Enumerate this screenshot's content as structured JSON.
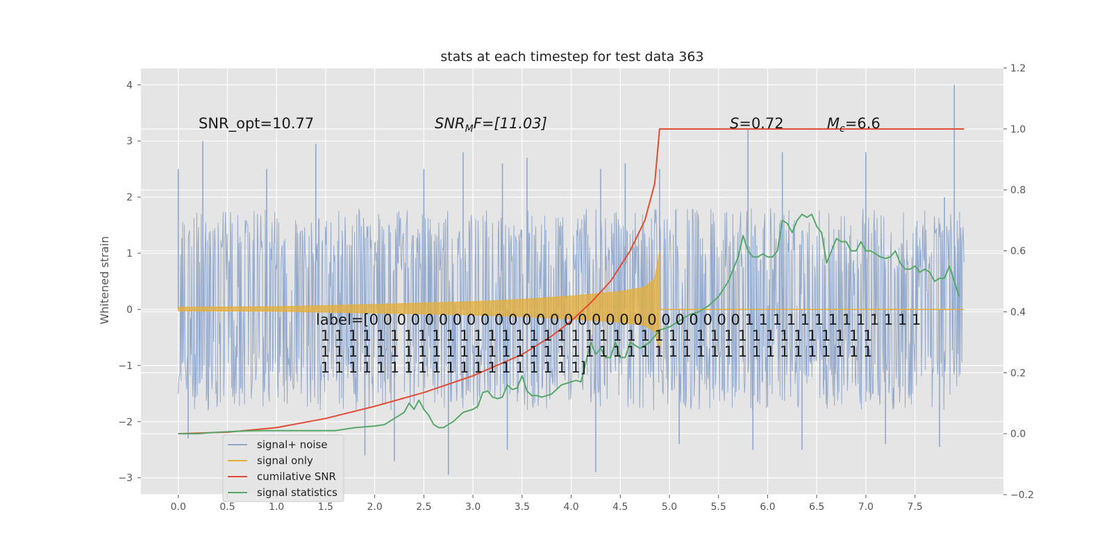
{
  "chart_data": {
    "type": "line",
    "title": "stats at each timestep for test data 363",
    "ylabel": "Whitened strain",
    "xlim": [
      -0.38,
      8.4
    ],
    "ylim": [
      -3.3,
      4.3
    ],
    "y2lim": [
      -0.2,
      1.2
    ],
    "x_ticks": [
      0.0,
      0.5,
      1.0,
      1.5,
      2.0,
      2.5,
      3.0,
      3.5,
      4.0,
      4.5,
      5.0,
      5.5,
      6.0,
      6.5,
      7.0,
      7.5
    ],
    "x_tick_labels": [
      "0.0",
      "0.5",
      "1.0",
      "1.5",
      "2.0",
      "2.5",
      "3.0",
      "3.5",
      "4.0",
      "4.5",
      "5.0",
      "5.5",
      "6.0",
      "6.5",
      "7.0",
      "7.5"
    ],
    "y_ticks": [
      -3,
      -2,
      -1,
      0,
      1,
      2,
      3,
      4
    ],
    "y_tick_labels": [
      "−3",
      "−2",
      "−1",
      "0",
      "1",
      "2",
      "3",
      "4"
    ],
    "y2_ticks": [
      -0.2,
      0.0,
      0.2,
      0.4,
      0.6,
      0.8,
      1.0,
      1.2
    ],
    "y2_tick_labels": [
      "−0.2",
      "0.0",
      "0.2",
      "0.4",
      "0.6",
      "0.8",
      "1.0",
      "1.2"
    ],
    "grid": true,
    "legend_position": "lower-left",
    "annotations": {
      "snr_opt": "SNR_opt=10.77",
      "snr_mf_main": "SNR",
      "snr_mf_sub": "M",
      "snr_mf_rest": "F=[11.03]",
      "s_var": "S",
      "s_rest": "=0.72",
      "mc_var": "M",
      "mc_sub": "c",
      "mc_rest": "=6.6",
      "label_lines": [
        "label=[0 0 0 0 0 0 0 0 0 0 0 0 0 0 0 0 0 0 0 0 0 0 0 0 0 0 0 1 1 1 1 1 1 1 1 1 1 1 1 1",
        " 1 1 1 1 1 1 1 1 1 1 1 1 1 1 1 1 1 1 1 1 1 1 1 1 1 1 1 1 1 1 1 1 1 1 1 1 1 1 1 1",
        " 1 1 1 1 1 1 1 1 1 1 1 1 1 1 1 1 1 1 1 1 1 1 1 1 1 1 1 1 1 1 1 1 1 1 1 1 1 1 1 1",
        " 1 1 1 1 1 1 1 1 1 1 1 1 1 1 1 1 1 1 1]"
      ]
    },
    "series": [
      {
        "name": "signal+ noise",
        "color": "#8fa6cb",
        "axis": "left",
        "style": "noise-fill",
        "x_range": [
          0.0,
          8.0
        ],
        "envelope_upper": 1.8,
        "envelope_lower": -1.8,
        "peaks_x": [
          0.0,
          0.25,
          0.9,
          1.4,
          2.5,
          2.9,
          3.3,
          3.55,
          4.3,
          4.55,
          4.9,
          5.8,
          6.15,
          7.0,
          7.8,
          7.9
        ],
        "peaks_y": [
          2.5,
          3.0,
          2.5,
          2.95,
          2.5,
          2.8,
          2.6,
          2.7,
          2.5,
          2.6,
          2.5,
          3.2,
          2.8,
          2.8,
          2.0,
          4.0
        ],
        "troughs_x": [
          0.1,
          1.9,
          2.2,
          2.75,
          3.35,
          4.25,
          5.1,
          5.85,
          6.35,
          7.2,
          7.75
        ],
        "troughs_y": [
          -2.3,
          -2.6,
          -2.7,
          -2.95,
          -2.5,
          -2.9,
          -2.4,
          -2.5,
          -2.5,
          -2.4,
          -2.45
        ]
      },
      {
        "name": "signal only",
        "color": "#e5ae38",
        "axis": "left",
        "style": "chirp",
        "x": [
          0.0,
          1.0,
          2.0,
          3.0,
          3.5,
          4.0,
          4.5,
          4.75,
          4.85,
          4.9,
          4.91
        ],
        "amplitude": [
          0.04,
          0.05,
          0.09,
          0.14,
          0.18,
          0.24,
          0.32,
          0.4,
          0.55,
          1.05,
          0.0
        ]
      },
      {
        "name": "cumilative SNR",
        "color": "#e24a33",
        "axis": "right",
        "x": [
          0.0,
          0.5,
          1.0,
          1.5,
          2.0,
          2.5,
          3.0,
          3.5,
          3.8,
          4.0,
          4.2,
          4.4,
          4.6,
          4.75,
          4.85,
          4.9,
          4.91,
          8.0
        ],
        "y": [
          0.0,
          0.005,
          0.02,
          0.05,
          0.09,
          0.135,
          0.19,
          0.26,
          0.32,
          0.37,
          0.43,
          0.5,
          0.6,
          0.7,
          0.82,
          1.0,
          1.0,
          1.0
        ]
      },
      {
        "name": "signal statistics",
        "color": "#55a868",
        "axis": "right",
        "x": [
          0.0,
          0.2,
          0.4,
          0.6,
          0.8,
          1.0,
          1.2,
          1.4,
          1.6,
          1.8,
          2.0,
          2.1,
          2.2,
          2.3,
          2.35,
          2.4,
          2.45,
          2.5,
          2.55,
          2.6,
          2.65,
          2.7,
          2.75,
          2.8,
          2.9,
          3.0,
          3.05,
          3.1,
          3.15,
          3.2,
          3.25,
          3.3,
          3.35,
          3.4,
          3.45,
          3.5,
          3.55,
          3.6,
          3.65,
          3.7,
          3.8,
          3.9,
          4.0,
          4.05,
          4.1,
          4.2,
          4.25,
          4.3,
          4.35,
          4.4,
          4.45,
          4.5,
          4.55,
          4.6,
          4.65,
          4.7,
          4.8,
          4.85,
          4.9,
          5.0,
          5.1,
          5.2,
          5.3,
          5.4,
          5.5,
          5.6,
          5.7,
          5.75,
          5.8,
          5.85,
          5.9,
          5.95,
          6.0,
          6.05,
          6.1,
          6.15,
          6.2,
          6.25,
          6.3,
          6.35,
          6.4,
          6.45,
          6.5,
          6.55,
          6.6,
          6.65,
          6.7,
          6.75,
          6.8,
          6.85,
          6.9,
          6.95,
          7.0,
          7.05,
          7.1,
          7.15,
          7.2,
          7.25,
          7.3,
          7.35,
          7.4,
          7.45,
          7.5,
          7.55,
          7.6,
          7.65,
          7.7,
          7.75,
          7.8,
          7.85,
          7.9,
          7.95
        ],
        "y": [
          0.0,
          0.0,
          0.005,
          0.008,
          0.01,
          0.01,
          0.01,
          0.01,
          0.01,
          0.02,
          0.025,
          0.03,
          0.05,
          0.07,
          0.1,
          0.08,
          0.11,
          0.08,
          0.06,
          0.03,
          0.02,
          0.02,
          0.03,
          0.04,
          0.07,
          0.08,
          0.09,
          0.135,
          0.14,
          0.12,
          0.115,
          0.12,
          0.16,
          0.145,
          0.15,
          0.19,
          0.14,
          0.125,
          0.125,
          0.12,
          0.13,
          0.16,
          0.17,
          0.175,
          0.17,
          0.3,
          0.26,
          0.28,
          0.25,
          0.25,
          0.3,
          0.25,
          0.25,
          0.3,
          0.29,
          0.28,
          0.3,
          0.32,
          0.34,
          0.35,
          0.37,
          0.39,
          0.4,
          0.42,
          0.45,
          0.5,
          0.58,
          0.65,
          0.6,
          0.58,
          0.58,
          0.59,
          0.58,
          0.58,
          0.6,
          0.7,
          0.69,
          0.66,
          0.7,
          0.72,
          0.71,
          0.72,
          0.68,
          0.66,
          0.56,
          0.6,
          0.64,
          0.63,
          0.63,
          0.6,
          0.6,
          0.63,
          0.6,
          0.6,
          0.59,
          0.58,
          0.575,
          0.58,
          0.6,
          0.56,
          0.54,
          0.54,
          0.55,
          0.53,
          0.54,
          0.53,
          0.5,
          0.51,
          0.51,
          0.55,
          0.5,
          0.45
        ]
      }
    ]
  }
}
